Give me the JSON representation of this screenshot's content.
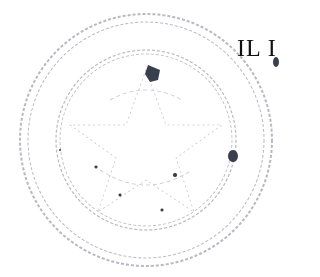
{
  "fragment_text": "IL I"
}
